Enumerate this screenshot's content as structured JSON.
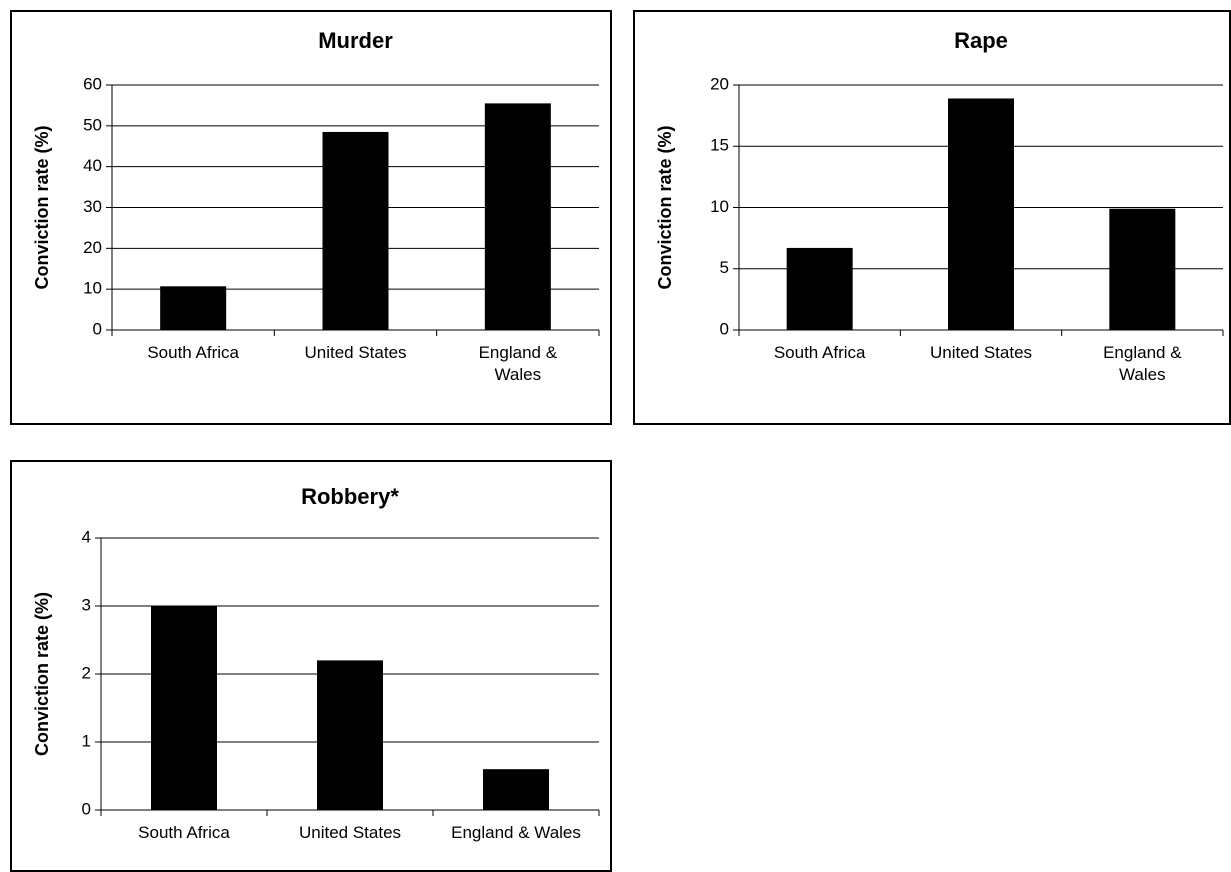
{
  "chart_data": [
    {
      "type": "bar",
      "title": "Murder",
      "ylabel": "Conviction rate (%)",
      "xlabel": "",
      "categories": [
        [
          "South Africa"
        ],
        [
          "United States"
        ],
        [
          "England &",
          "Wales"
        ]
      ],
      "values": [
        10.7,
        48.5,
        55.5
      ],
      "ylim": [
        0,
        60
      ],
      "yticks": [
        0,
        10,
        20,
        30,
        40,
        50,
        60
      ],
      "grid": true,
      "bar_color": "#000000"
    },
    {
      "type": "bar",
      "title": "Rape",
      "ylabel": "Conviction rate (%)",
      "xlabel": "",
      "categories": [
        [
          "South Africa"
        ],
        [
          "United States"
        ],
        [
          "England &",
          "Wales"
        ]
      ],
      "values": [
        6.7,
        18.9,
        9.9
      ],
      "ylim": [
        0,
        20
      ],
      "yticks": [
        0,
        5,
        10,
        15,
        20
      ],
      "grid": true,
      "bar_color": "#000000"
    },
    {
      "type": "bar",
      "title": "Robbery*",
      "ylabel": "Conviction rate (%)",
      "xlabel": "",
      "categories": [
        [
          "South Africa"
        ],
        [
          "United States"
        ],
        [
          "England & Wales"
        ]
      ],
      "values": [
        3.0,
        2.2,
        0.6
      ],
      "ylim": [
        0,
        4
      ],
      "yticks": [
        0,
        1,
        2,
        3,
        4
      ],
      "grid": true,
      "bar_color": "#000000"
    }
  ]
}
